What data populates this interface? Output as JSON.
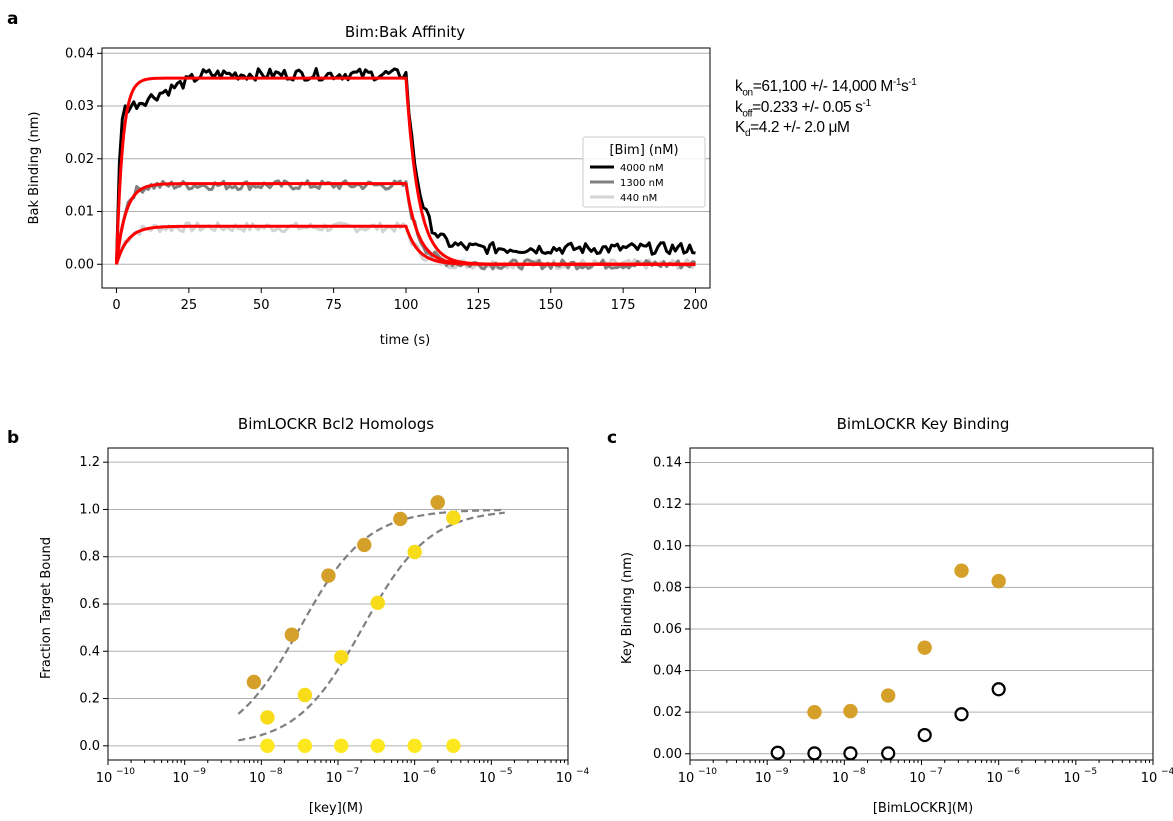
{
  "figure": {
    "panels": [
      {
        "letter": "a"
      },
      {
        "letter": "b"
      },
      {
        "letter": "c"
      }
    ]
  },
  "kinetics": {
    "kon_sym": "k",
    "kon_sub": "on",
    "kon_text": "=61,100 +/- 14,000 M",
    "kon_unit_sup": "-1",
    "kon_unit_s": "s",
    "kon_unit_sup2": "-1",
    "koff_sym": "k",
    "koff_sub": "off",
    "koff_text": "=0.233 +/- 0.05 s",
    "koff_sup": "-1",
    "kd_sym": "K",
    "kd_sub": "d",
    "kd_text": "=4.2 +/- 2.0 μM"
  },
  "chart_data": [
    {
      "type": "line",
      "title": "Bim:Bak Affinity",
      "xlabel": "time (s)",
      "ylabel": "Bak Binding (nm)",
      "xlim": [
        -5,
        205
      ],
      "ylim": [
        -0.0045,
        0.041
      ],
      "xticks": [
        0,
        25,
        50,
        75,
        100,
        125,
        150,
        175,
        200
      ],
      "yticks": [
        0.0,
        0.01,
        0.02,
        0.03,
        0.04
      ],
      "ytick_labels": [
        "0.00",
        "0.01",
        "0.02",
        "0.03",
        "0.04"
      ],
      "grid": "horizontal",
      "legend": {
        "title": "[Bim] (nM)",
        "placement": "right"
      },
      "series": [
        {
          "name": "4000 nM",
          "color": "#000000",
          "plateau": 0.036,
          "tail": 0.003,
          "noise": 0.0011,
          "approx_points": [
            [
              0,
              0.0
            ],
            [
              2,
              0.027
            ],
            [
              5,
              0.03
            ],
            [
              10,
              0.033
            ],
            [
              25,
              0.036
            ],
            [
              50,
              0.036
            ],
            [
              75,
              0.037
            ],
            [
              100,
              0.038
            ],
            [
              103,
              0.02
            ],
            [
              108,
              0.01
            ],
            [
              125,
              0.005
            ],
            [
              150,
              0.004
            ],
            [
              175,
              0.003
            ],
            [
              200,
              0.002
            ]
          ]
        },
        {
          "name": "1300 nM",
          "color": "#808080",
          "plateau": 0.015,
          "tail": 0.0,
          "noise": 0.0009,
          "approx_points": [
            [
              0,
              0.003
            ],
            [
              5,
              0.014
            ],
            [
              25,
              0.015
            ],
            [
              50,
              0.015
            ],
            [
              75,
              0.015
            ],
            [
              100,
              0.015
            ],
            [
              110,
              0.003
            ],
            [
              125,
              0.0
            ],
            [
              150,
              0.0
            ],
            [
              175,
              0.0
            ],
            [
              200,
              -0.002
            ]
          ]
        },
        {
          "name": "440 nM",
          "color": "#d3d3d3",
          "plateau": 0.007,
          "tail": 0.0,
          "noise": 0.0009,
          "approx_points": [
            [
              0,
              0.004
            ],
            [
              10,
              0.006
            ],
            [
              25,
              0.007
            ],
            [
              50,
              0.007
            ],
            [
              75,
              0.007
            ],
            [
              100,
              0.008
            ],
            [
              110,
              0.002
            ],
            [
              125,
              0.0
            ],
            [
              150,
              0.0
            ],
            [
              175,
              0.001
            ],
            [
              200,
              0.0
            ]
          ]
        }
      ],
      "fits": {
        "color": "#ff0000",
        "kon": 61100,
        "koff": 0.233,
        "curves": [
          {
            "conc_nM": 4000,
            "plateau": 0.0353
          },
          {
            "conc_nM": 1300,
            "plateau": 0.0153
          },
          {
            "conc_nM": 440,
            "plateau": 0.0072
          }
        ]
      }
    },
    {
      "type": "scatter",
      "title": "BimLOCKR Bcl2 Homologs",
      "xlabel": "[key](M)",
      "ylabel": "Fraction Target Bound",
      "xscale": "log",
      "xlim_exp": [
        -10,
        -4
      ],
      "ylim": [
        -0.06,
        1.26
      ],
      "xticks_exp": [
        -10,
        -9,
        -8,
        -7,
        -6,
        -5,
        -4
      ],
      "yticks": [
        0.0,
        0.2,
        0.4,
        0.6,
        0.8,
        1.0,
        1.2
      ],
      "ytick_labels": [
        "0.0",
        "0.2",
        "0.4",
        "0.6",
        "0.8",
        "1.0",
        "1.2"
      ],
      "grid": "horizontal",
      "series": [
        {
          "color": "#d4a02a",
          "points": [
            [
              8e-09,
              0.27
            ],
            [
              2.5e-08,
              0.47
            ],
            [
              7.5e-08,
              0.72
            ],
            [
              2.2e-07,
              0.85
            ],
            [
              6.5e-07,
              0.96
            ],
            [
              2e-06,
              1.03
            ]
          ]
        },
        {
          "color": "#f8dc1a",
          "points": [
            [
              1.2e-08,
              0.12
            ],
            [
              3.7e-08,
              0.215
            ],
            [
              1.1e-07,
              0.375
            ],
            [
              3.3e-07,
              0.605
            ],
            [
              1e-06,
              0.82
            ],
            [
              3.2e-06,
              0.965
            ]
          ]
        },
        {
          "color": "#fde81f",
          "points": [
            [
              1.2e-08,
              0.0
            ],
            [
              3.7e-08,
              0.0
            ],
            [
              1.1e-07,
              0.0
            ],
            [
              3.3e-07,
              0.0
            ],
            [
              1e-06,
              0.0
            ],
            [
              3.2e-06,
              0.0
            ]
          ]
        }
      ],
      "fit_curves": [
        {
          "color": "#808080",
          "style": "dashed",
          "ec50": 3.2e-08,
          "hill": 1.0,
          "x_range": [
            5e-09,
            1.5e-05
          ]
        },
        {
          "color": "#808080",
          "style": "dashed",
          "ec50": 2.1e-07,
          "hill": 1.0,
          "x_range": [
            5e-09,
            1.5e-05
          ]
        }
      ]
    },
    {
      "type": "scatter",
      "title": "BimLOCKR Key Binding",
      "xlabel": "[BimLOCKR](M)",
      "ylabel": "Key Binding (nm)",
      "xscale": "log",
      "xlim_exp": [
        -10,
        -4
      ],
      "ylim": [
        -0.003,
        0.147
      ],
      "xticks_exp": [
        -10,
        -9,
        -8,
        -7,
        -6,
        -5,
        -4
      ],
      "yticks": [
        0.0,
        0.02,
        0.04,
        0.06,
        0.08,
        0.1,
        0.12,
        0.14
      ],
      "ytick_labels": [
        "0.00",
        "0.02",
        "0.04",
        "0.06",
        "0.08",
        "0.10",
        "0.12",
        "0.14"
      ],
      "grid": "horizontal",
      "series": [
        {
          "color": "#d4a02a",
          "marker": "filled",
          "points": [
            [
              4.1e-09,
              0.02
            ],
            [
              1.2e-08,
              0.0205
            ],
            [
              3.7e-08,
              0.028
            ],
            [
              1.1e-07,
              0.051
            ],
            [
              3.3e-07,
              0.088
            ],
            [
              1e-06,
              0.083
            ]
          ]
        },
        {
          "color": "#000000",
          "marker": "open",
          "points": [
            [
              1.37e-09,
              0.0005
            ],
            [
              4.1e-09,
              0.0002
            ],
            [
              1.2e-08,
              0.0002
            ],
            [
              3.7e-08,
              0.0002
            ],
            [
              1.1e-07,
              0.009
            ],
            [
              3.3e-07,
              0.019
            ],
            [
              1e-06,
              0.031
            ]
          ]
        }
      ]
    }
  ]
}
